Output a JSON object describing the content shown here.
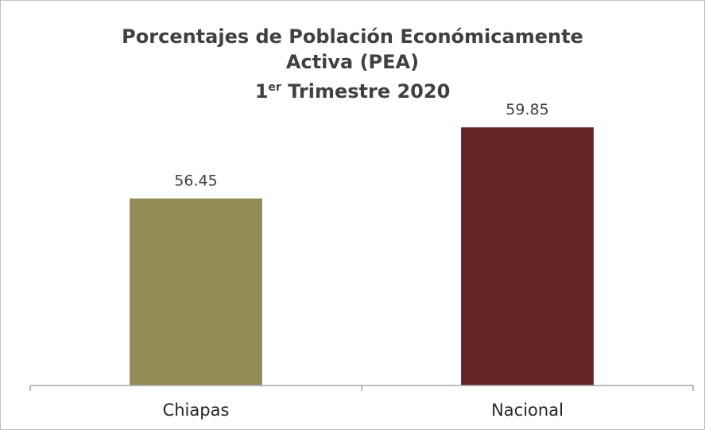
{
  "chart_data": {
    "type": "bar",
    "title": {
      "line1": "Porcentajes de Población Económicamente",
      "line2": "Activa (PEA)",
      "line3_number": "1",
      "line3_superscript": "er",
      "line3_rest": " Trimestre 2020"
    },
    "xlabel": "",
    "ylabel": "",
    "categories": [
      "Chiapas",
      "Nacional"
    ],
    "values": [
      56.45,
      59.85
    ],
    "data_labels": [
      "56.45",
      "59.85"
    ],
    "colors": [
      "#948a54",
      "#632523"
    ],
    "ylim": [
      47.5,
      61
    ],
    "grid": false,
    "legend": "none"
  }
}
